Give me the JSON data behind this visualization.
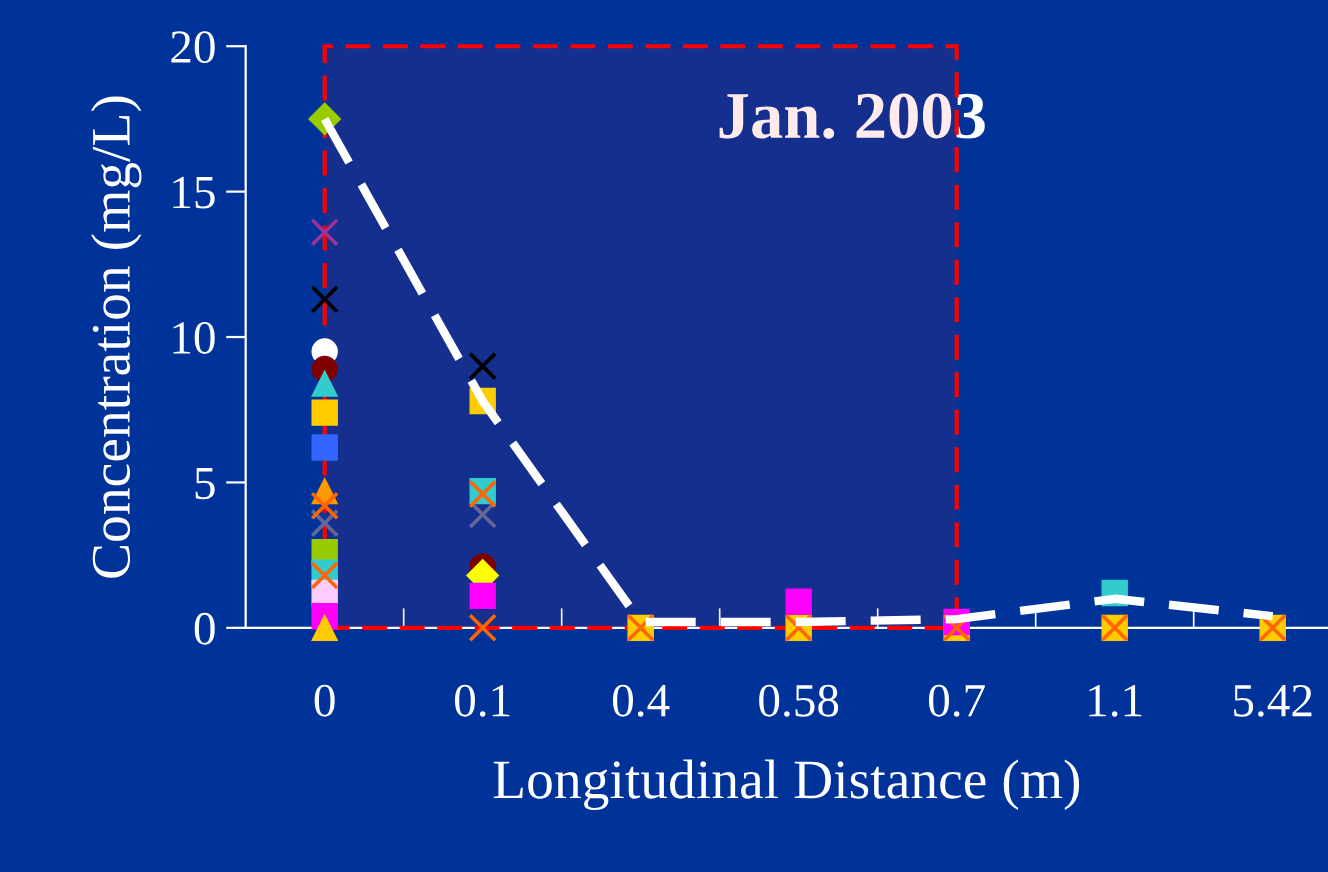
{
  "chart_data": {
    "type": "scatter",
    "categories": [
      "0",
      "0.1",
      "0.4",
      "0.58",
      "0.7",
      "1.1",
      "5.42"
    ],
    "xlabel": "Longitudinal Distance (m)",
    "ylabel": "Concentration (mg/L)",
    "ylim": [
      0,
      20
    ],
    "yticks": [
      0,
      5,
      10,
      15,
      20
    ],
    "annotations": [
      "Jan. 2003"
    ],
    "bands": [
      {
        "axis": "x",
        "from": "0",
        "to": "0.7",
        "color": "#ff0000"
      }
    ],
    "series": [
      {
        "type": "line",
        "color": "#ffffff",
        "line_style": "dashed",
        "marker": "none",
        "values": [
          17.5,
          7.8,
          0.2,
          0.2,
          0.3,
          1.0,
          0.4
        ]
      },
      {
        "color": "#99cc00",
        "marker": "diamond",
        "values": [
          17.5,
          null,
          null,
          null,
          null,
          null,
          null
        ]
      },
      {
        "color": "#993399",
        "marker": "cross",
        "values": [
          13.6,
          null,
          null,
          null,
          null,
          null,
          null
        ]
      },
      {
        "color": "#000000",
        "marker": "cross",
        "values": [
          11.3,
          9.0,
          null,
          null,
          null,
          null,
          null
        ]
      },
      {
        "color": "#ffffff",
        "marker": "circle",
        "values": [
          9.5,
          null,
          null,
          null,
          null,
          null,
          null
        ]
      },
      {
        "color": "#800000",
        "marker": "circle",
        "values": [
          8.9,
          2.1,
          null,
          null,
          null,
          null,
          null
        ]
      },
      {
        "color": "#33cccc",
        "marker": "triangle",
        "values": [
          8.4,
          null,
          null,
          null,
          null,
          null,
          null
        ]
      },
      {
        "color": "#ffcc00",
        "marker": "square",
        "values": [
          7.4,
          7.8,
          0,
          0,
          0,
          0,
          0
        ]
      },
      {
        "color": "#3366ff",
        "marker": "square",
        "values": [
          6.2,
          null,
          null,
          null,
          null,
          null,
          null
        ]
      },
      {
        "color": "#ff9900",
        "marker": "triangle",
        "values": [
          4.7,
          null,
          null,
          null,
          null,
          null,
          null
        ]
      },
      {
        "color": "#666699",
        "marker": "cross",
        "values": [
          3.6,
          3.9,
          null,
          null,
          null,
          null,
          null
        ]
      },
      {
        "color": "#99cc00",
        "marker": "square",
        "values": [
          2.6,
          null,
          null,
          null,
          null,
          null,
          null
        ]
      },
      {
        "color": "#33cccc",
        "marker": "square",
        "values": [
          1.9,
          4.7,
          null,
          null,
          null,
          1.2,
          null
        ]
      },
      {
        "color": "#ffccff",
        "marker": "square",
        "values": [
          1.2,
          null,
          null,
          null,
          null,
          null,
          null
        ]
      },
      {
        "color": "#ffff00",
        "marker": "diamond",
        "values": [
          null,
          1.8,
          null,
          null,
          null,
          null,
          null
        ]
      },
      {
        "color": "#ff00ff",
        "marker": "square",
        "values": [
          0.4,
          1.1,
          null,
          0.9,
          0.2,
          null,
          null
        ]
      },
      {
        "color": "#ffcc00",
        "marker": "triangle",
        "values": [
          0,
          null,
          null,
          null,
          null,
          null,
          null
        ]
      },
      {
        "color": "#ff6600",
        "marker": "cross",
        "values": [
          4.2,
          4.6,
          null,
          null,
          null,
          null,
          null
        ]
      },
      {
        "color": "#ff6600",
        "marker": "cross",
        "values": [
          1.8,
          0,
          0,
          0,
          0,
          0,
          0
        ]
      }
    ]
  }
}
